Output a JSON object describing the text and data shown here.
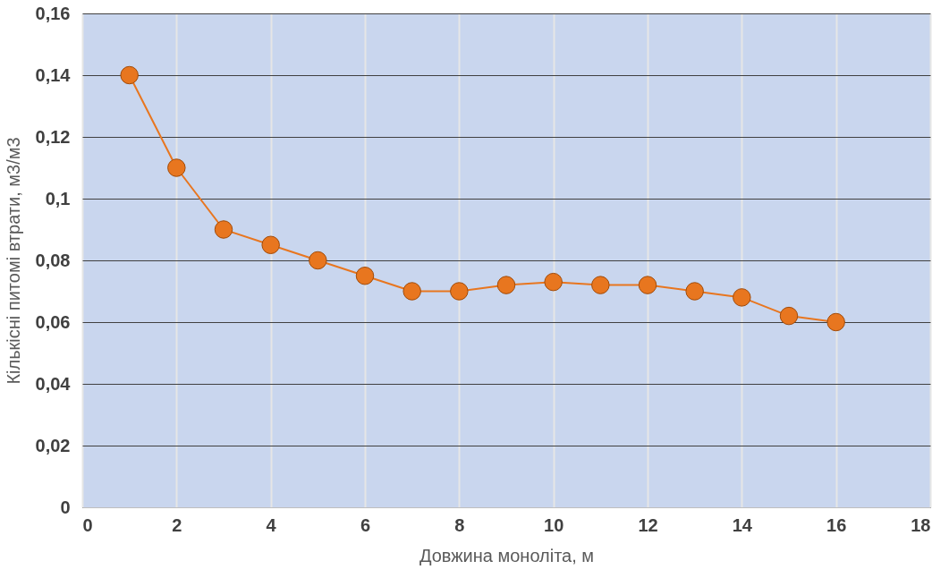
{
  "chart_data": {
    "type": "line",
    "xlabel": "Довжина моноліта, м",
    "ylabel": "Кількісні питомі втрати, м3/м3",
    "x": [
      1,
      2,
      3,
      4,
      5,
      6,
      7,
      8,
      9,
      10,
      11,
      12,
      13,
      14,
      15,
      16
    ],
    "series": [
      {
        "color": "#e8761f",
        "values": [
          0.14,
          0.11,
          0.09,
          0.085,
          0.08,
          0.075,
          0.07,
          0.07,
          0.072,
          0.073,
          0.072,
          0.072,
          0.07,
          0.068,
          0.062,
          0.06
        ]
      }
    ],
    "xlim": [
      0,
      18
    ],
    "xticks": [
      0,
      2,
      4,
      6,
      8,
      10,
      12,
      14,
      16,
      18
    ],
    "ylim": [
      0,
      0.16
    ],
    "yticks": [
      0,
      {
        "value": 0.02,
        "label": "0,02"
      },
      {
        "value": 0.04,
        "label": "0,04"
      },
      {
        "value": 0.06,
        "label": "0,06"
      },
      {
        "value": 0.08,
        "label": "0,08"
      },
      {
        "value": 0.1,
        "label": "0,1"
      },
      {
        "value": 0.12,
        "label": "0,12"
      },
      {
        "value": 0.14,
        "label": "0,14"
      },
      {
        "value": 0.16,
        "label": "0,16"
      }
    ],
    "grid": true,
    "marker": "circle",
    "line_style": "solid"
  }
}
